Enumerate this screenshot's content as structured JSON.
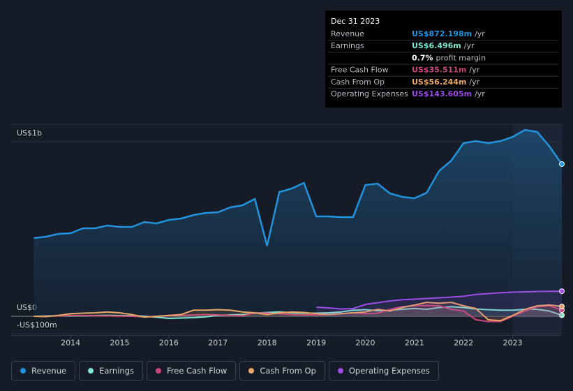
{
  "chart_data": {
    "type": "line",
    "x": [
      2013.25,
      2013.5,
      2013.75,
      2014,
      2014.25,
      2014.5,
      2014.75,
      2015,
      2015.25,
      2015.5,
      2015.75,
      2016,
      2016.25,
      2016.5,
      2016.75,
      2017,
      2017.25,
      2017.5,
      2017.75,
      2018,
      2018.25,
      2018.5,
      2018.75,
      2019,
      2019.25,
      2019.5,
      2019.75,
      2020,
      2020.25,
      2020.5,
      2020.75,
      2021,
      2021.25,
      2021.5,
      2021.75,
      2022,
      2022.25,
      2022.5,
      2022.75,
      2023,
      2023.25,
      2023.5,
      2023.75,
      2024
    ],
    "series": [
      {
        "name": "Revenue",
        "color": "#2394df",
        "values": [
          448,
          456,
          472,
          476,
          504,
          504,
          520,
          512,
          512,
          540,
          532,
          552,
          560,
          580,
          592,
          596,
          624,
          636,
          672,
          404,
          712,
          732,
          764,
          572,
          572,
          568,
          568,
          752,
          760,
          704,
          684,
          676,
          708,
          832,
          892,
          992,
          1004,
          992,
          1004,
          1028,
          1068,
          1056,
          972,
          872.198
        ]
      },
      {
        "name": "Earnings",
        "color": "#7de8d4",
        "values": [
          0,
          2,
          3,
          2,
          3,
          4,
          5,
          4,
          3,
          1,
          -5,
          -12,
          -10,
          -8,
          -3,
          5,
          8,
          10,
          18,
          22,
          25,
          20,
          18,
          18,
          20,
          25,
          35,
          38,
          32,
          35,
          40,
          45,
          40,
          50,
          55,
          50,
          42,
          38,
          35,
          35,
          40,
          40,
          30,
          6.496
        ]
      },
      {
        "name": "Free Cash Flow",
        "color": "#c9447a",
        "values": [
          0,
          0,
          2,
          5,
          4,
          3,
          2,
          1,
          0,
          -3,
          0,
          2,
          5,
          8,
          10,
          8,
          5,
          3,
          20,
          18,
          15,
          10,
          8,
          8,
          10,
          15,
          20,
          15,
          18,
          40,
          55,
          60,
          62,
          60,
          40,
          30,
          -20,
          -30,
          -30,
          0,
          30,
          55,
          60,
          35.511
        ]
      },
      {
        "name": "Cash From Op",
        "color": "#e8a866",
        "values": [
          0,
          -2,
          5,
          15,
          18,
          20,
          25,
          20,
          10,
          -5,
          0,
          5,
          10,
          35,
          35,
          38,
          35,
          25,
          20,
          10,
          20,
          25,
          22,
          15,
          10,
          15,
          20,
          25,
          40,
          30,
          50,
          65,
          80,
          75,
          80,
          60,
          45,
          -20,
          -25,
          5,
          40,
          60,
          65,
          56.244
        ]
      },
      {
        "name": "Operating Expenses",
        "color": "#9b4de6",
        "values": [
          null,
          null,
          null,
          null,
          null,
          null,
          null,
          null,
          null,
          null,
          null,
          null,
          null,
          null,
          null,
          null,
          null,
          null,
          null,
          null,
          null,
          null,
          null,
          52,
          48,
          42,
          44,
          68,
          78,
          88,
          95,
          98,
          102,
          106,
          110,
          115,
          125,
          130,
          135,
          138,
          140,
          142,
          143,
          143.605
        ]
      }
    ],
    "xlim": [
      2012.79,
      2024
    ],
    "xticks": [
      2014,
      2015,
      2016,
      2017,
      2018,
      2019,
      2020,
      2021,
      2022,
      2023
    ],
    "ylim": [
      -110,
      1100
    ],
    "yticks": [
      {
        "value": 1000,
        "label": "US$1b"
      },
      {
        "value": 0,
        "label": "US$0"
      },
      {
        "value": -100,
        "label": "-US$100m"
      }
    ],
    "grid": true,
    "tooltip": {
      "date": "Dec 31 2023",
      "rows": [
        {
          "label": "Revenue",
          "value": "US$872.198m",
          "unit": "/yr"
        },
        {
          "label": "Earnings",
          "value": "US$6.496m",
          "unit": "/yr"
        },
        {
          "label": "",
          "value": "0.7%",
          "unit": "profit margin"
        },
        {
          "label": "Free Cash Flow",
          "value": "US$35.511m",
          "unit": "/yr"
        },
        {
          "label": "Cash From Op",
          "value": "US$56.244m",
          "unit": "/yr"
        },
        {
          "label": "Operating Expenses",
          "value": "US$143.605m",
          "unit": "/yr"
        }
      ]
    }
  }
}
